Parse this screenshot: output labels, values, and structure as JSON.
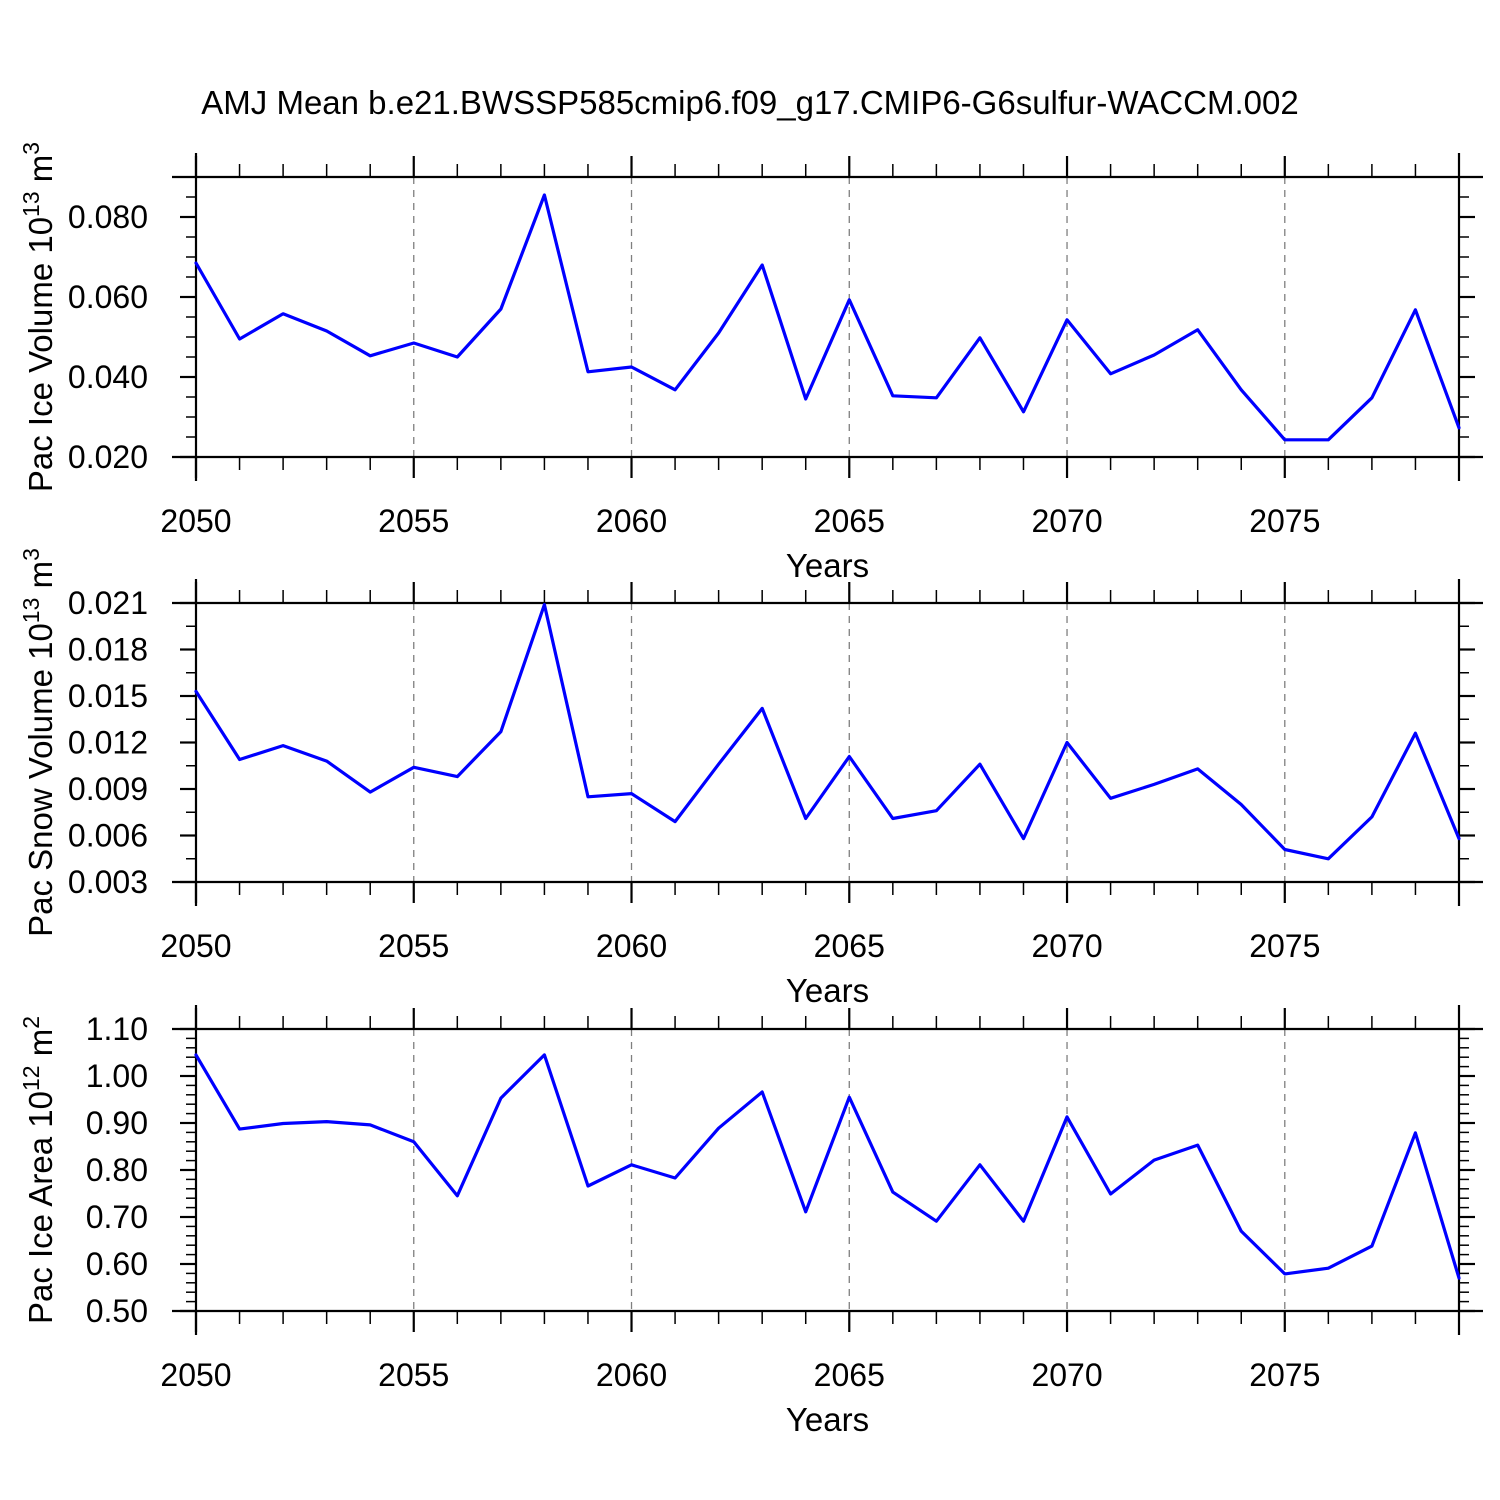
{
  "title": "AMJ Mean b.e21.BWSSP585cmip6.f09_g17.CMIP6-G6sulfur-WACCM.002",
  "colors": {
    "line": "#0000ff",
    "frame": "#000000",
    "grid": "#7f7f7f",
    "text": "#000000",
    "background": "#ffffff"
  },
  "x_axis": {
    "label": "Years",
    "range": [
      2050,
      2079
    ],
    "major_ticks": [
      2050,
      2055,
      2060,
      2065,
      2070,
      2075
    ],
    "major_tick_labels": [
      "2050",
      "2055",
      "2060",
      "2065",
      "2070",
      "2075"
    ],
    "gridlines": [
      2055,
      2060,
      2065,
      2070,
      2075
    ],
    "minor_step": 1
  },
  "years": [
    2050,
    2051,
    2052,
    2053,
    2054,
    2055,
    2056,
    2057,
    2058,
    2059,
    2060,
    2061,
    2062,
    2063,
    2064,
    2065,
    2066,
    2067,
    2068,
    2069,
    2070,
    2071,
    2072,
    2073,
    2074,
    2075,
    2076,
    2077,
    2078,
    2079
  ],
  "chart_data": [
    {
      "type": "line",
      "id": "ice-volume",
      "ylabel": "Pac Ice Volume 10^13 m^3",
      "ylabel_parts": [
        {
          "t": "Pac Ice Volume 10",
          "sup": false
        },
        {
          "t": "13",
          "sup": true
        },
        {
          "t": " m",
          "sup": false
        },
        {
          "t": "3",
          "sup": true
        }
      ],
      "xlabel": "Years",
      "ylim": [
        0.02,
        0.09
      ],
      "ytick_values": [
        0.02,
        0.04,
        0.06,
        0.08
      ],
      "ytick_labels": [
        "0.020",
        "0.040",
        "0.060",
        "0.080"
      ],
      "yminor_step": 0.005,
      "values": [
        0.0685,
        0.0495,
        0.0558,
        0.0515,
        0.0453,
        0.0485,
        0.045,
        0.057,
        0.0855,
        0.0413,
        0.0425,
        0.0368,
        0.051,
        0.068,
        0.0345,
        0.0593,
        0.0353,
        0.0348,
        0.0498,
        0.0313,
        0.0543,
        0.0408,
        0.0455,
        0.0518,
        0.0368,
        0.0243,
        0.0243,
        0.0348,
        0.0568,
        0.0273
      ]
    },
    {
      "type": "line",
      "id": "snow-volume",
      "ylabel": "Pac Snow Volume 10^13 m^3",
      "ylabel_parts": [
        {
          "t": "Pac Snow Volume 10",
          "sup": false
        },
        {
          "t": "13",
          "sup": true
        },
        {
          "t": " m",
          "sup": false
        },
        {
          "t": "3",
          "sup": true
        }
      ],
      "xlabel": "Years",
      "ylim": [
        0.003,
        0.021
      ],
      "ytick_values": [
        0.003,
        0.006,
        0.009,
        0.012,
        0.015,
        0.018,
        0.021
      ],
      "ytick_labels": [
        "0.003",
        "0.006",
        "0.009",
        "0.012",
        "0.015",
        "0.018",
        "0.021"
      ],
      "yminor_step": 0.0015,
      "values": [
        0.0153,
        0.0109,
        0.0118,
        0.0108,
        0.0088,
        0.0104,
        0.0098,
        0.0127,
        0.0209,
        0.0085,
        0.0087,
        0.0069,
        0.0106,
        0.0142,
        0.0071,
        0.0111,
        0.0071,
        0.0076,
        0.0106,
        0.0058,
        0.012,
        0.0084,
        0.0093,
        0.0103,
        0.008,
        0.0051,
        0.0045,
        0.0072,
        0.0126,
        0.0058
      ]
    },
    {
      "type": "line",
      "id": "ice-area",
      "ylabel": "Pac Ice Area 10^12 m^2",
      "ylabel_parts": [
        {
          "t": "Pac Ice Area 10",
          "sup": false
        },
        {
          "t": "12",
          "sup": true
        },
        {
          "t": " m",
          "sup": false
        },
        {
          "t": "2",
          "sup": true
        }
      ],
      "xlabel": "Years",
      "ylim": [
        0.5,
        1.1
      ],
      "ytick_values": [
        0.5,
        0.6,
        0.7,
        0.8,
        0.9,
        1.0,
        1.1
      ],
      "ytick_labels": [
        "0.50",
        "0.60",
        "0.70",
        "0.80",
        "0.90",
        "1.00",
        "1.10"
      ],
      "yminor_step": 0.02,
      "values": [
        1.045,
        0.887,
        0.899,
        0.903,
        0.896,
        0.86,
        0.745,
        0.953,
        1.045,
        0.766,
        0.811,
        0.783,
        0.889,
        0.966,
        0.711,
        0.955,
        0.753,
        0.691,
        0.811,
        0.691,
        0.913,
        0.749,
        0.821,
        0.853,
        0.67,
        0.579,
        0.591,
        0.638,
        0.879,
        0.57
      ]
    }
  ]
}
